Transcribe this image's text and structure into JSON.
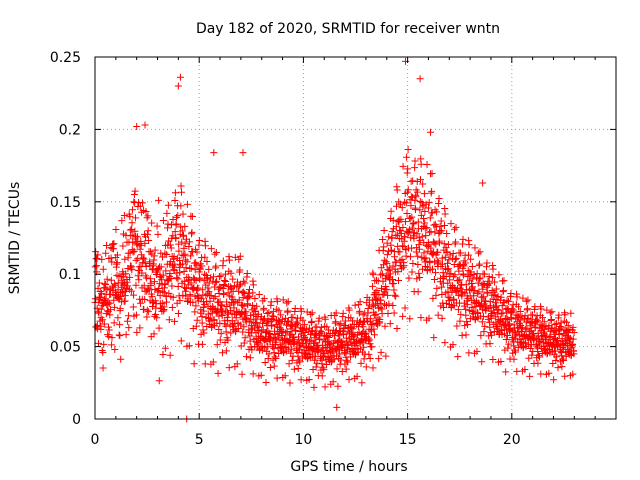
{
  "chart_data": {
    "type": "scatter",
    "title": "Day 182 of 2020, SRMTID for receiver wntn",
    "xlabel": "GPS time / hours",
    "ylabel": "SRMTID / TECUs",
    "xlim": [
      0,
      25
    ],
    "ylim": [
      0,
      0.25
    ],
    "xticks": [
      0,
      5,
      10,
      15,
      20
    ],
    "xtick_labels": [
      "0",
      "5",
      "10",
      "15",
      "20"
    ],
    "yticks": [
      0,
      0.05,
      0.1,
      0.15,
      0.2,
      0.25
    ],
    "ytick_labels": [
      "0",
      "0.05",
      "0.1",
      "0.15",
      "0.2",
      "0.25"
    ],
    "grid": true,
    "marker": "plus",
    "marker_color": "#ff0000",
    "outlier_points": [
      {
        "x": 4.4,
        "y": 0.0
      },
      {
        "x": 14.9,
        "y": 0.247
      },
      {
        "x": 4.1,
        "y": 0.236
      },
      {
        "x": 4.0,
        "y": 0.23
      },
      {
        "x": 15.6,
        "y": 0.235
      },
      {
        "x": 16.1,
        "y": 0.198
      },
      {
        "x": 2.4,
        "y": 0.203
      },
      {
        "x": 2.0,
        "y": 0.202
      },
      {
        "x": 7.1,
        "y": 0.184
      },
      {
        "x": 5.7,
        "y": 0.184
      },
      {
        "x": 18.6,
        "y": 0.163
      },
      {
        "x": 11.6,
        "y": 0.008
      }
    ],
    "trend": [
      {
        "x": 0.0,
        "mean": 0.08,
        "spread": 0.03
      },
      {
        "x": 1.0,
        "mean": 0.09,
        "spread": 0.035
      },
      {
        "x": 2.0,
        "mean": 0.11,
        "spread": 0.045
      },
      {
        "x": 3.0,
        "mean": 0.09,
        "spread": 0.04
      },
      {
        "x": 4.0,
        "mean": 0.12,
        "spread": 0.05
      },
      {
        "x": 5.0,
        "mean": 0.09,
        "spread": 0.04
      },
      {
        "x": 6.0,
        "mean": 0.08,
        "spread": 0.035
      },
      {
        "x": 7.0,
        "mean": 0.08,
        "spread": 0.035
      },
      {
        "x": 8.0,
        "mean": 0.06,
        "spread": 0.025
      },
      {
        "x": 9.0,
        "mean": 0.06,
        "spread": 0.025
      },
      {
        "x": 10.0,
        "mean": 0.055,
        "spread": 0.022
      },
      {
        "x": 11.0,
        "mean": 0.05,
        "spread": 0.022
      },
      {
        "x": 12.0,
        "mean": 0.055,
        "spread": 0.022
      },
      {
        "x": 13.0,
        "mean": 0.06,
        "spread": 0.025
      },
      {
        "x": 14.0,
        "mean": 0.1,
        "spread": 0.04
      },
      {
        "x": 15.0,
        "mean": 0.14,
        "spread": 0.05
      },
      {
        "x": 16.0,
        "mean": 0.13,
        "spread": 0.05
      },
      {
        "x": 17.0,
        "mean": 0.1,
        "spread": 0.04
      },
      {
        "x": 18.0,
        "mean": 0.09,
        "spread": 0.035
      },
      {
        "x": 19.0,
        "mean": 0.08,
        "spread": 0.03
      },
      {
        "x": 20.0,
        "mean": 0.065,
        "spread": 0.025
      },
      {
        "x": 21.0,
        "mean": 0.06,
        "spread": 0.022
      },
      {
        "x": 22.0,
        "mean": 0.055,
        "spread": 0.02
      },
      {
        "x": 23.0,
        "mean": 0.055,
        "spread": 0.02
      }
    ],
    "point_count": 2200,
    "x_max_data": 23.0
  }
}
